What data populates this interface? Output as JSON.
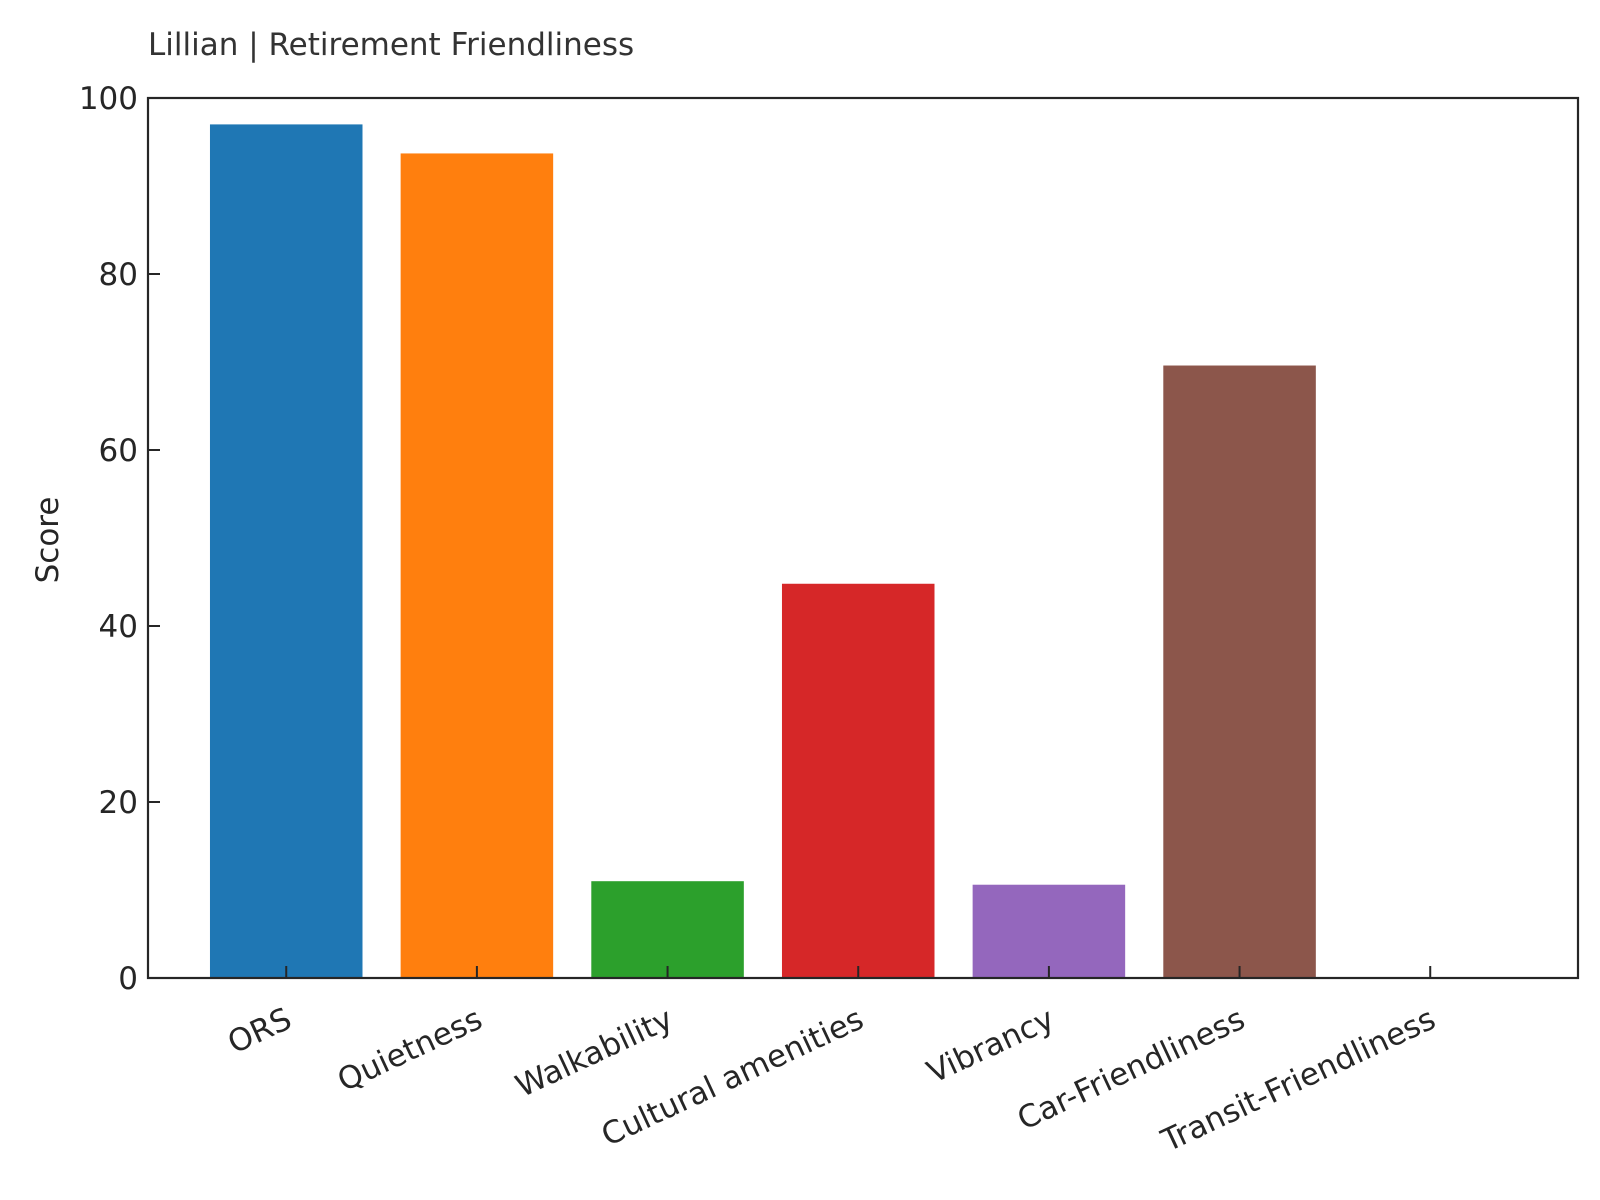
{
  "chart_data": {
    "type": "bar",
    "title": "Lillian | Retirement Friendliness",
    "xlabel": "",
    "ylabel": "Score",
    "ylim": [
      0,
      100
    ],
    "yticks": [
      0,
      20,
      40,
      60,
      80,
      100
    ],
    "grid": false,
    "categories": [
      "ORS",
      "Quietness",
      "Walkability",
      "Cultural amenities",
      "Vibrancy",
      "Car-Friendliness",
      "Transit-Friendliness"
    ],
    "values": [
      97,
      93.7,
      11,
      44.8,
      10.6,
      69.6,
      0
    ],
    "colors": [
      "#1f77b4",
      "#ff7f0e",
      "#2ca02c",
      "#d62728",
      "#9467bd",
      "#8c564b",
      "#e377c2"
    ]
  }
}
